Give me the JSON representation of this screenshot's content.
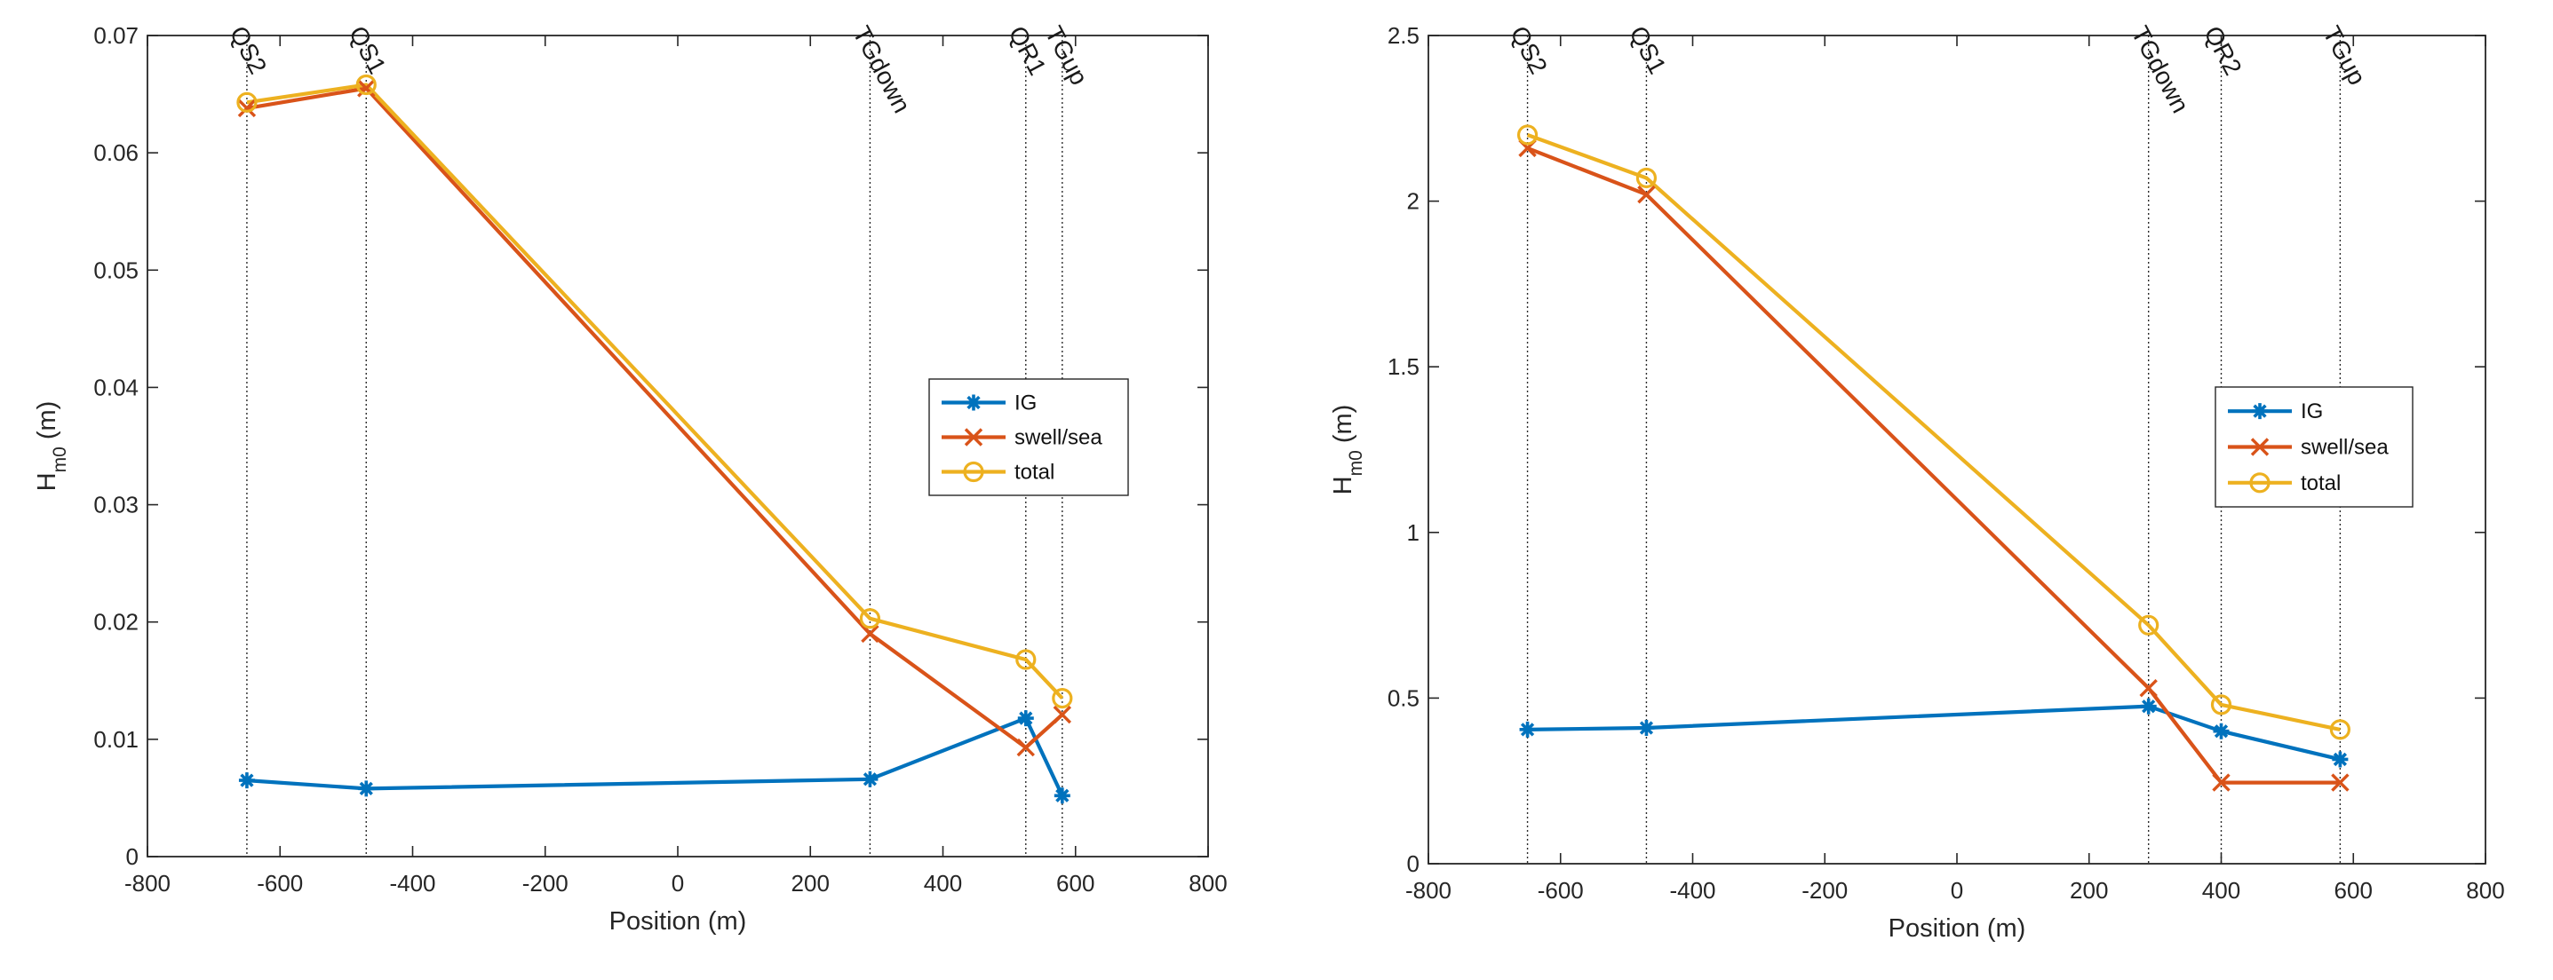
{
  "chart_data": [
    {
      "type": "line",
      "title": "",
      "xlabel": "Position (m)",
      "ylabel_main": "H",
      "ylabel_sub": "m0",
      "ylabel_unit": " (m)",
      "xlim": [
        -800,
        800
      ],
      "ylim": [
        0,
        0.07
      ],
      "xticks": [
        -800,
        -600,
        -400,
        -200,
        0,
        200,
        400,
        600,
        800
      ],
      "xtick_labels": [
        "-800",
        "-600",
        "-400",
        "-200",
        "0",
        "200",
        "400",
        "600",
        "800"
      ],
      "yticks": [
        0,
        0.01,
        0.02,
        0.03,
        0.04,
        0.05,
        0.06,
        0.07
      ],
      "ytick_labels": [
        "0",
        "0.01",
        "0.02",
        "0.03",
        "0.04",
        "0.05",
        "0.06",
        "0.07"
      ],
      "grid": false,
      "legend_position": "right",
      "stations": [
        {
          "name": "QS2",
          "x": -650
        },
        {
          "name": "QS1",
          "x": -470
        },
        {
          "name": "TGdown",
          "x": 290
        },
        {
          "name": "QR1",
          "x": 525
        },
        {
          "name": "TGup",
          "x": 580
        }
      ],
      "series": [
        {
          "name": "IG",
          "color": "#0072BD",
          "marker": "asterisk",
          "x": [
            -650,
            -470,
            290,
            525,
            580
          ],
          "y": [
            0.0065,
            0.0058,
            0.0066,
            0.0118,
            0.0052
          ]
        },
        {
          "name": "swell/sea",
          "color": "#D95319",
          "marker": "x",
          "x": [
            -650,
            -470,
            290,
            525,
            580
          ],
          "y": [
            0.0638,
            0.0655,
            0.019,
            0.0093,
            0.0121
          ]
        },
        {
          "name": "total",
          "color": "#EDB120",
          "marker": "circle",
          "x": [
            -650,
            -470,
            290,
            525,
            580
          ],
          "y": [
            0.0643,
            0.0658,
            0.0203,
            0.0168,
            0.0135
          ]
        }
      ]
    },
    {
      "type": "line",
      "title": "",
      "xlabel": "Position (m)",
      "ylabel_main": "H",
      "ylabel_sub": "m0",
      "ylabel_unit": " (m)",
      "xlim": [
        -800,
        800
      ],
      "ylim": [
        0,
        2.5
      ],
      "xticks": [
        -800,
        -600,
        -400,
        -200,
        0,
        200,
        400,
        600,
        800
      ],
      "xtick_labels": [
        "-800",
        "-600",
        "-400",
        "-200",
        "0",
        "200",
        "400",
        "600",
        "800"
      ],
      "yticks": [
        0,
        0.5,
        1,
        1.5,
        2,
        2.5
      ],
      "ytick_labels": [
        "0",
        "0.5",
        "1",
        "1.5",
        "2",
        "2.5"
      ],
      "grid": false,
      "legend_position": "right",
      "stations": [
        {
          "name": "QS2",
          "x": -650
        },
        {
          "name": "QS1",
          "x": -470
        },
        {
          "name": "TGdown",
          "x": 290
        },
        {
          "name": "QR2",
          "x": 400
        },
        {
          "name": "TGup",
          "x": 580
        }
      ],
      "series": [
        {
          "name": "IG",
          "color": "#0072BD",
          "marker": "asterisk",
          "x": [
            -650,
            -470,
            290,
            400,
            580
          ],
          "y": [
            0.405,
            0.41,
            0.475,
            0.4,
            0.315
          ]
        },
        {
          "name": "swell/sea",
          "color": "#D95319",
          "marker": "x",
          "x": [
            -650,
            -470,
            290,
            400,
            580
          ],
          "y": [
            2.16,
            2.02,
            0.53,
            0.245,
            0.245
          ]
        },
        {
          "name": "total",
          "color": "#EDB120",
          "marker": "circle",
          "x": [
            -650,
            -470,
            290,
            400,
            580
          ],
          "y": [
            2.2,
            2.07,
            0.72,
            0.48,
            0.405
          ]
        }
      ]
    }
  ]
}
